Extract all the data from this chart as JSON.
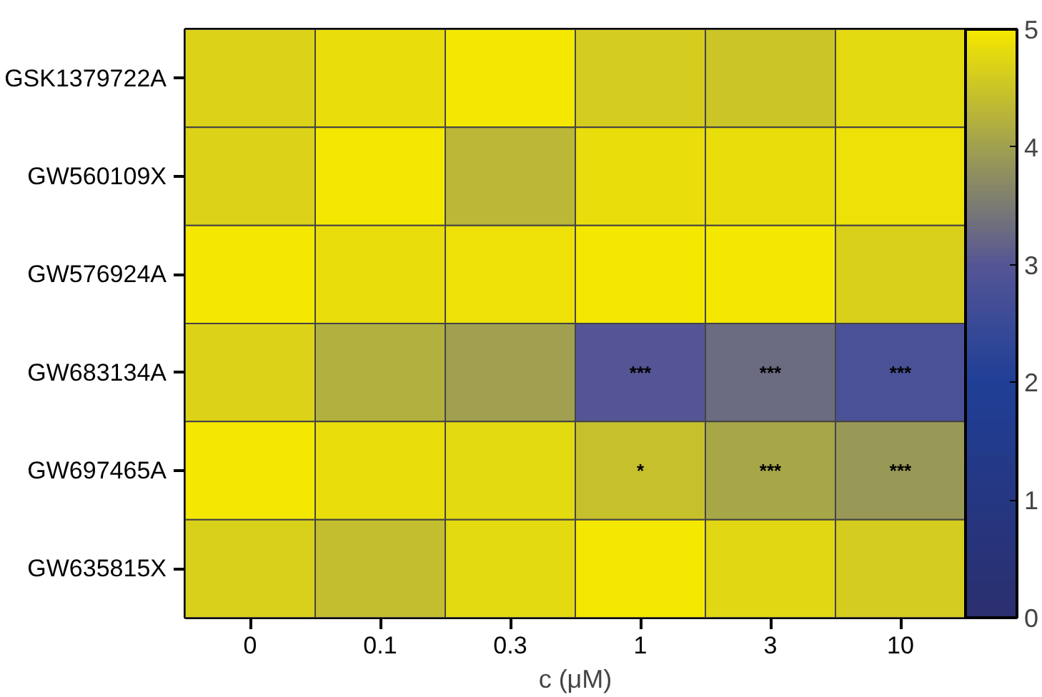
{
  "chart_data": {
    "type": "heatmap",
    "xlabel": "c (μM)",
    "categories": [
      "0",
      "0.1",
      "0.3",
      "1",
      "3",
      "10"
    ],
    "y_categories": [
      "GSK1379722A",
      "GW560109X",
      "GW576924A",
      "GW683134A",
      "GW697465A",
      "GW635815X"
    ],
    "cells": [
      [
        4.7,
        4.85,
        5.0,
        4.6,
        4.5,
        4.8
      ],
      [
        4.7,
        5.0,
        4.3,
        4.85,
        4.85,
        4.9
      ],
      [
        5.0,
        4.85,
        4.9,
        5.0,
        5.0,
        4.65
      ],
      [
        4.7,
        4.2,
        4.0,
        3.0,
        3.3,
        2.8
      ],
      [
        5.0,
        4.85,
        4.8,
        4.45,
        4.1,
        3.9
      ],
      [
        4.65,
        4.4,
        4.8,
        5.0,
        4.75,
        4.6
      ]
    ],
    "cell_labels": [
      [
        null,
        null,
        null,
        null,
        null,
        null
      ],
      [
        null,
        null,
        null,
        null,
        null,
        null
      ],
      [
        null,
        null,
        null,
        null,
        null,
        null
      ],
      [
        null,
        null,
        null,
        "***",
        "***",
        "***"
      ],
      [
        null,
        null,
        null,
        "*",
        "***",
        "***"
      ],
      [
        null,
        null,
        null,
        null,
        null,
        null
      ]
    ],
    "clim": [
      0,
      5
    ],
    "cticks": [
      0,
      1,
      2,
      3,
      4,
      5
    ]
  }
}
